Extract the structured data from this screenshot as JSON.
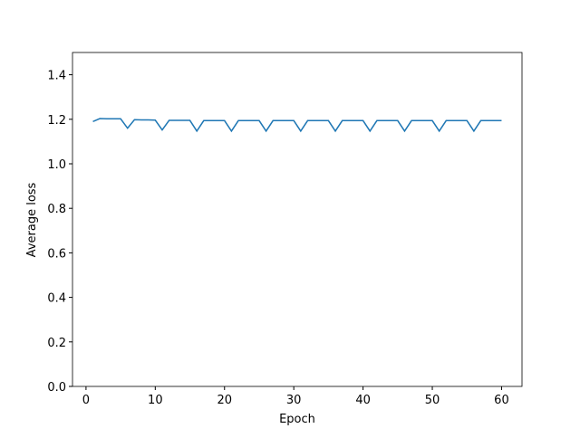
{
  "chart_data": {
    "type": "line",
    "x_label": "Epoch",
    "y_label": "Average loss",
    "x": [
      1,
      2,
      3,
      4,
      5,
      6,
      7,
      8,
      9,
      10,
      11,
      12,
      13,
      14,
      15,
      16,
      17,
      18,
      19,
      20,
      21,
      22,
      23,
      24,
      25,
      26,
      27,
      28,
      29,
      30,
      31,
      32,
      33,
      34,
      35,
      36,
      37,
      38,
      39,
      40,
      41,
      42,
      43,
      44,
      45,
      46,
      47,
      48,
      49,
      50,
      51,
      52,
      53,
      54,
      55,
      56,
      57,
      58,
      59,
      60
    ],
    "series": [
      {
        "color": "#1f77b4",
        "values": [
          1.19,
          1.203,
          1.202,
          1.202,
          1.202,
          1.16,
          1.198,
          1.197,
          1.197,
          1.196,
          1.152,
          1.195,
          1.195,
          1.195,
          1.195,
          1.147,
          1.194,
          1.194,
          1.194,
          1.194,
          1.147,
          1.194,
          1.194,
          1.194,
          1.194,
          1.147,
          1.194,
          1.194,
          1.194,
          1.194,
          1.147,
          1.194,
          1.194,
          1.194,
          1.194,
          1.147,
          1.194,
          1.194,
          1.194,
          1.194,
          1.147,
          1.194,
          1.194,
          1.194,
          1.194,
          1.147,
          1.194,
          1.194,
          1.194,
          1.194,
          1.147,
          1.194,
          1.194,
          1.194,
          1.194,
          1.147,
          1.194,
          1.194,
          1.194,
          1.194
        ]
      }
    ],
    "xlim": [
      -1.95,
      62.95
    ],
    "xticks": [
      0,
      10,
      20,
      30,
      40,
      50,
      60
    ],
    "ylim": [
      0,
      1.5
    ],
    "yticks": [
      {
        "value": 0,
        "label": "0.0"
      },
      {
        "value": 0.2,
        "label": "0.2"
      },
      {
        "value": 0.4,
        "label": "0.4"
      },
      {
        "value": 0.6,
        "label": "0.6"
      },
      {
        "value": 0.8,
        "label": "0.8"
      },
      {
        "value": 1.0,
        "label": "1.0"
      },
      {
        "value": 1.2,
        "label": "1.2"
      },
      {
        "value": 1.4,
        "label": "1.4"
      }
    ]
  }
}
